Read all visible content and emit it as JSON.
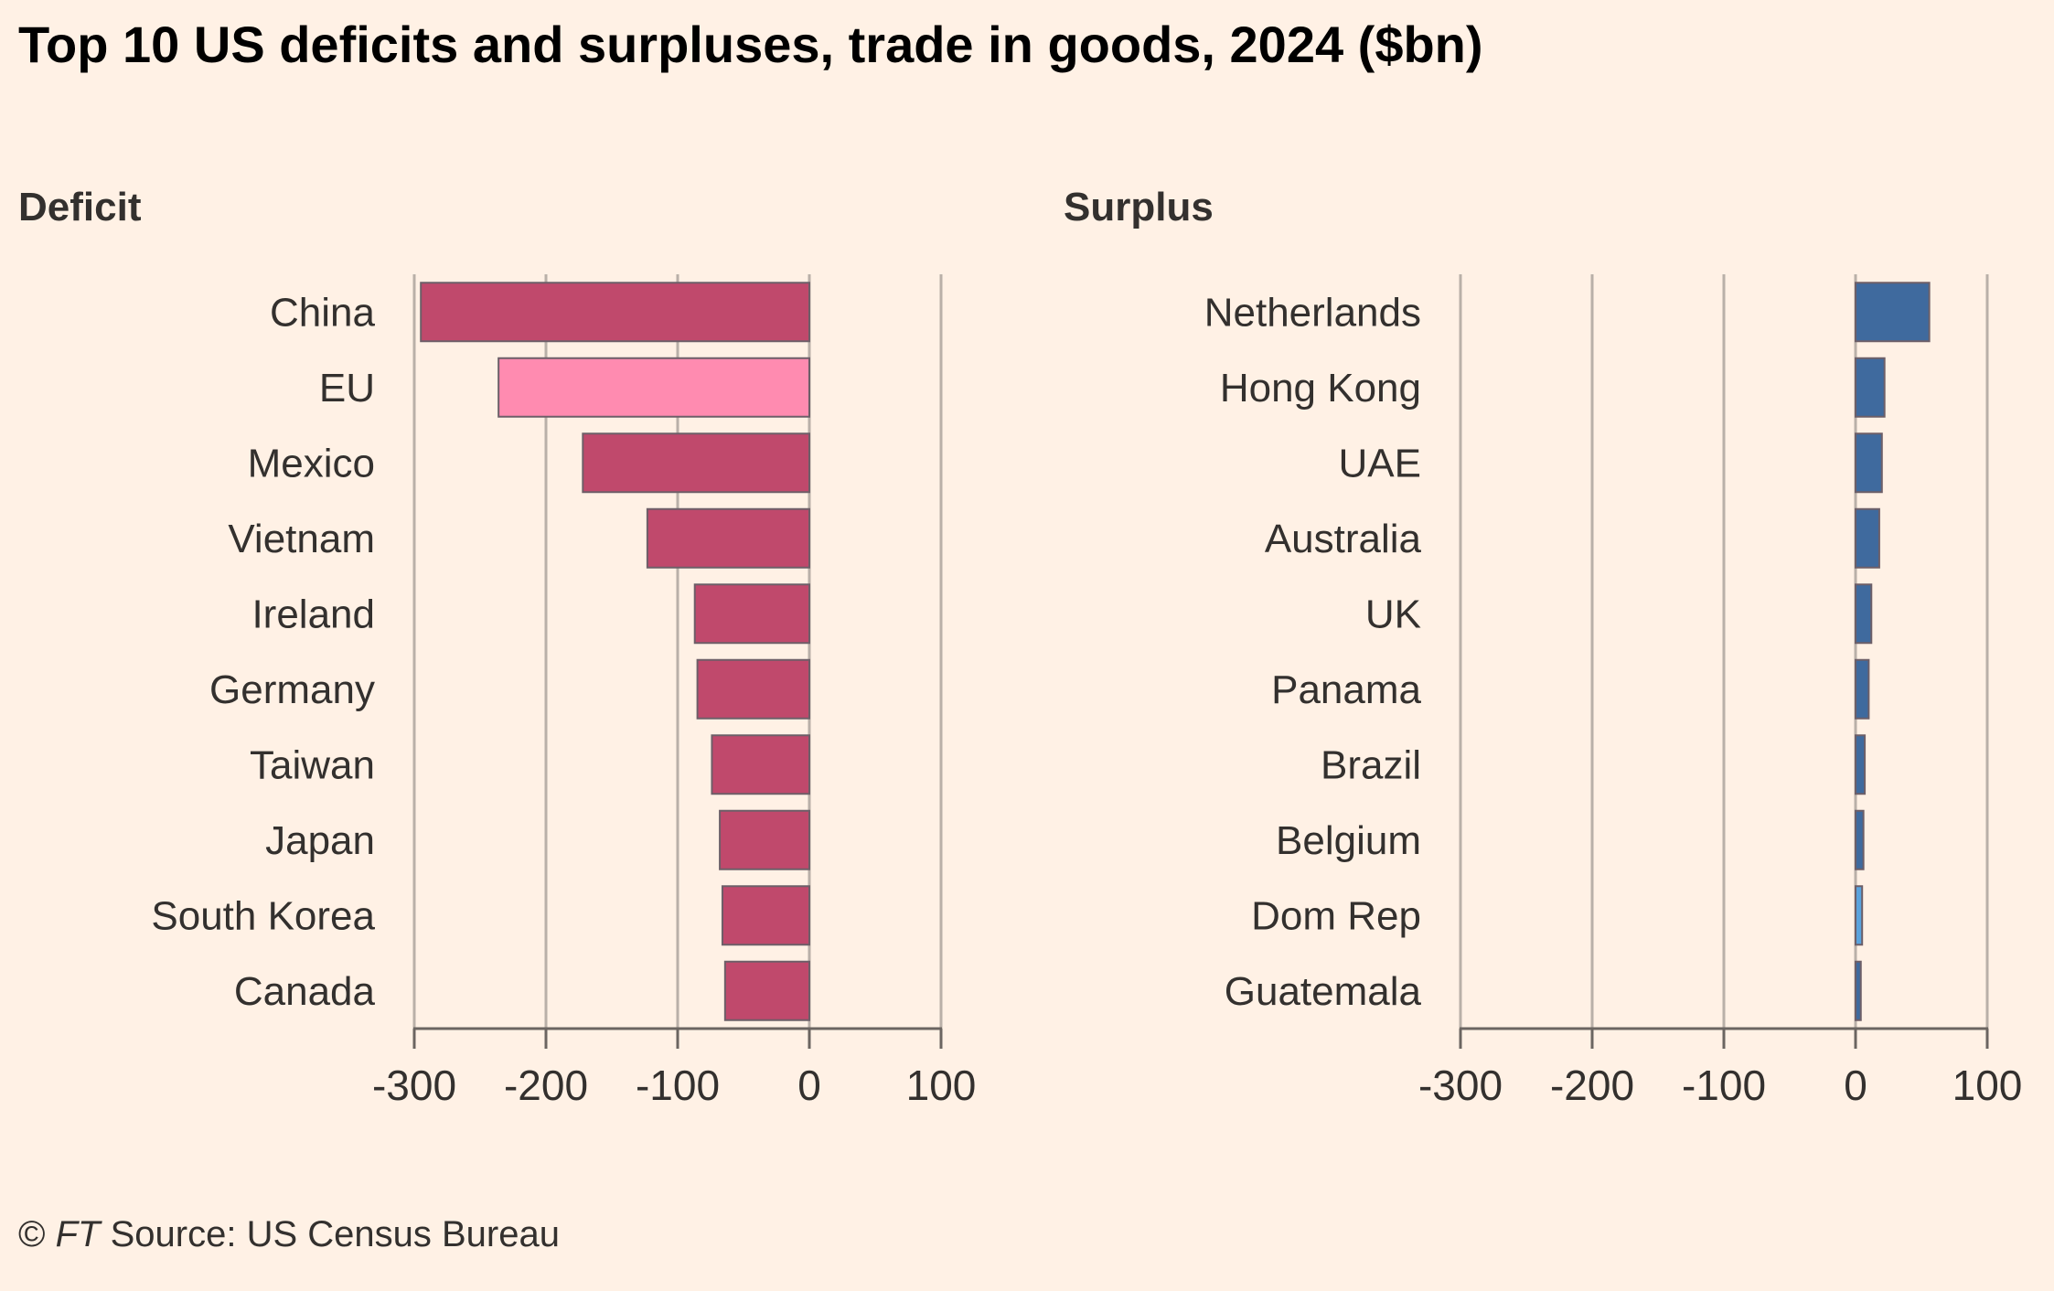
{
  "title": "Top 10 US deficits and surpluses, trade in goods, 2024 ($bn)",
  "source": {
    "copyright": "©",
    "brand": "FT",
    "text": "Source: US Census Bureau"
  },
  "colors": {
    "background": "#fff1e5",
    "deficit": "#c0496c",
    "deficit_highlight": "#ff8bb0",
    "surplus": "#3f6a9e",
    "surplus_highlight": "#5aa3dd",
    "grid": "#b9b0a8",
    "axis": "#6b6561"
  },
  "chart_data": [
    {
      "type": "bar",
      "orientation": "horizontal",
      "title": "Deficit",
      "categories": [
        "China",
        "EU",
        "Mexico",
        "Vietnam",
        "Ireland",
        "Germany",
        "Taiwan",
        "Japan",
        "South Korea",
        "Canada"
      ],
      "values": [
        -295,
        -236,
        -172,
        -123,
        -87,
        -85,
        -74,
        -68,
        -66,
        -64
      ],
      "highlight": [
        "EU"
      ],
      "xlim": [
        -300,
        100
      ],
      "xticks": [
        -300,
        -200,
        -100,
        0,
        100
      ],
      "grid": true
    },
    {
      "type": "bar",
      "orientation": "horizontal",
      "title": "Surplus",
      "categories": [
        "Netherlands",
        "Hong Kong",
        "UAE",
        "Australia",
        "UK",
        "Panama",
        "Brazil",
        "Belgium",
        "Dom Rep",
        "Guatemala"
      ],
      "values": [
        56,
        22,
        20,
        18,
        12,
        10,
        7,
        6,
        5,
        4
      ],
      "highlight": [
        "Dom Rep"
      ],
      "xlim": [
        -300,
        100
      ],
      "xticks": [
        -300,
        -200,
        -100,
        0,
        100
      ],
      "grid": true
    }
  ]
}
